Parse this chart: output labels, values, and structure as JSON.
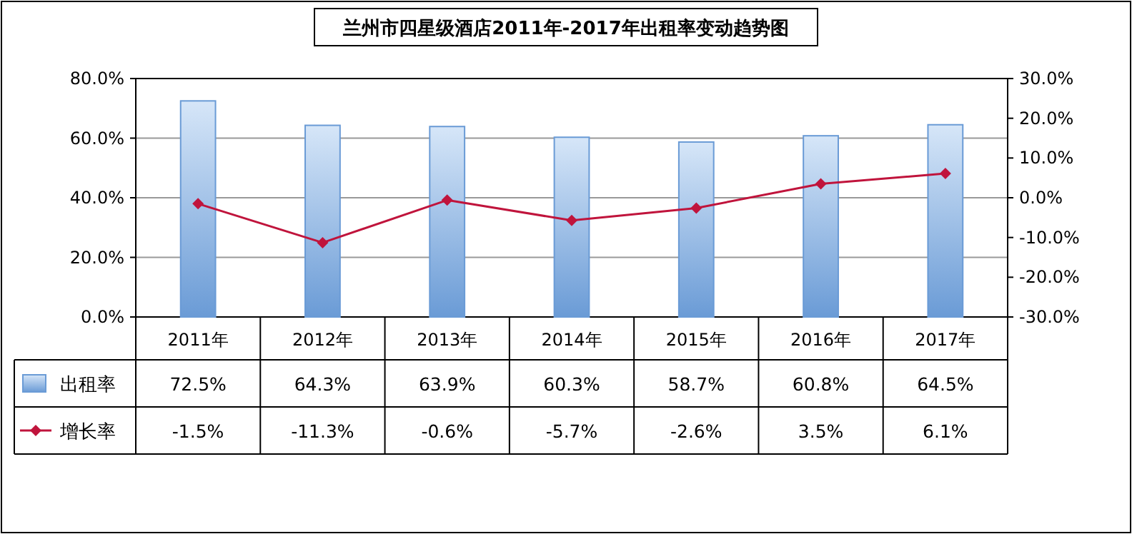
{
  "chart_data": {
    "type": "bar",
    "title": "兰州市四星级酒店2011年-2017年出租率变动趋势图",
    "categories": [
      "2011年",
      "2012年",
      "2013年",
      "2014年",
      "2015年",
      "2016年",
      "2017年"
    ],
    "series": [
      {
        "name": "出租率",
        "color": "#6a9bd6",
        "values": [
          72.5,
          64.3,
          63.9,
          60.3,
          58.7,
          60.8,
          64.5
        ],
        "value_labels": [
          "72.5%",
          "64.3%",
          "63.9%",
          "60.3%",
          "58.7%",
          "60.8%",
          "64.5%"
        ]
      },
      {
        "name": "增长率",
        "type": "line",
        "axis": "y2",
        "color": "#c0143c",
        "values": [
          -1.5,
          -11.3,
          -0.6,
          -5.7,
          -2.6,
          3.5,
          6.1
        ],
        "value_labels": [
          "-1.5%",
          "-11.3%",
          "-0.6%",
          "-5.7%",
          "-2.6%",
          "3.5%",
          "6.1%"
        ]
      }
    ],
    "ylim": [
      0,
      80
    ],
    "yticks": [
      {
        "value": 0,
        "label": "0.0%"
      },
      {
        "value": 20,
        "label": "20.0%"
      },
      {
        "value": 40,
        "label": "40.0%"
      },
      {
        "value": 60,
        "label": "60.0%"
      },
      {
        "value": 80,
        "label": "80.0%"
      }
    ],
    "y2lim": [
      -30,
      30
    ],
    "y2ticks": [
      {
        "value": -30,
        "label": "-30.0%"
      },
      {
        "value": -20,
        "label": "-20.0%"
      },
      {
        "value": -10,
        "label": "-10.0%"
      },
      {
        "value": 0,
        "label": "0.0%"
      },
      {
        "value": 10,
        "label": "10.0%"
      },
      {
        "value": 20,
        "label": "20.0%"
      },
      {
        "value": 30,
        "label": "30.0%"
      }
    ],
    "grid": "y",
    "legend": "bottom",
    "marker": "diamond"
  }
}
